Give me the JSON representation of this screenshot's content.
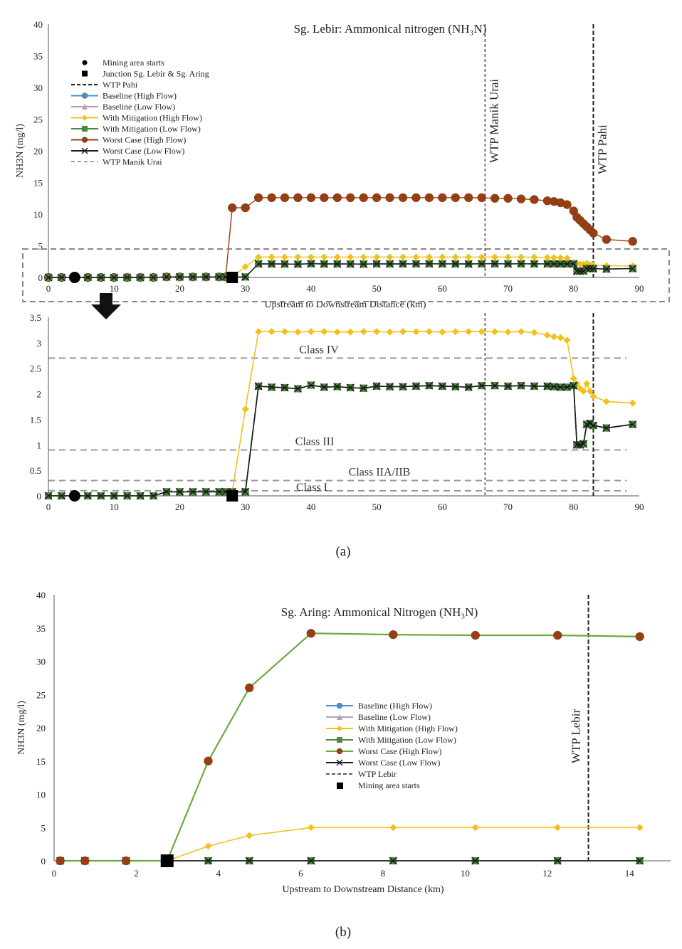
{
  "chart_data": [
    {
      "type": "line",
      "panel_label": "(a)",
      "title": "Sg. Lebir: Ammonical nitrogen (NH₃N)",
      "xlabel": "Upstream to Downstream Distance (km)",
      "ylabel": "NH3N (mg/l)",
      "xlim": [
        0,
        90
      ],
      "ylim": [
        0,
        40
      ],
      "xticks": [
        "0",
        "10",
        "20",
        "30",
        "40",
        "50",
        "60",
        "70",
        "80",
        "90"
      ],
      "yticks": [
        "0",
        "5",
        "10",
        "15",
        "20",
        "25",
        "30",
        "35",
        "40"
      ],
      "x": [
        0,
        2,
        4,
        6,
        8,
        10,
        12,
        14,
        16,
        18,
        20,
        22,
        24,
        26,
        27,
        28,
        30,
        32,
        34,
        36,
        38,
        40,
        42,
        44,
        46,
        48,
        50,
        52,
        54,
        56,
        58,
        60,
        62,
        64,
        66,
        68,
        70,
        72,
        74,
        76,
        77,
        78,
        79,
        80,
        80.5,
        81,
        81.5,
        82,
        82.5,
        83,
        85,
        89
      ],
      "series": [
        {
          "name": "Baseline (High Flow)",
          "color": "#4a90c8",
          "marker": "circle",
          "values": [
            0,
            0,
            0,
            0,
            0,
            0,
            0,
            0,
            0,
            0.08,
            0.08,
            0.08,
            0.08,
            0.08,
            0.08,
            0.08,
            0.08,
            2.15,
            2.13,
            2.12,
            2.1,
            2.17,
            2.13,
            2.14,
            2.12,
            2.11,
            2.15,
            2.14,
            2.14,
            2.15,
            2.16,
            2.15,
            2.14,
            2.13,
            2.16,
            2.16,
            2.15,
            2.16,
            2.15,
            2.15,
            2.14,
            2.13,
            2.13,
            2.16,
            1.0,
            1.0,
            1.02,
            1.4,
            1.42,
            1.38,
            1.33,
            1.4
          ]
        },
        {
          "name": "Baseline (Low Flow)",
          "color": "#b79fb5",
          "marker": "triangle",
          "values": [
            0,
            0,
            0,
            0,
            0,
            0,
            0,
            0,
            0,
            0.08,
            0.08,
            0.08,
            0.08,
            0.08,
            0.08,
            0.08,
            0.08,
            2.15,
            2.13,
            2.12,
            2.1,
            2.17,
            2.13,
            2.14,
            2.12,
            2.11,
            2.15,
            2.14,
            2.14,
            2.15,
            2.16,
            2.15,
            2.14,
            2.13,
            2.16,
            2.16,
            2.15,
            2.16,
            2.15,
            2.15,
            2.14,
            2.13,
            2.13,
            2.16,
            1.0,
            1.0,
            1.02,
            1.4,
            1.42,
            1.38,
            1.33,
            1.4
          ]
        },
        {
          "name": "With Mitigation (High Flow)",
          "color": "#f2c11c",
          "marker": "diamond",
          "values": [
            0,
            0,
            0,
            0,
            0,
            0,
            0,
            0,
            0,
            0.08,
            0.08,
            0.08,
            0.08,
            0.08,
            0.08,
            0.08,
            1.7,
            3.22,
            3.22,
            3.22,
            3.21,
            3.22,
            3.22,
            3.21,
            3.21,
            3.22,
            3.22,
            3.21,
            3.22,
            3.22,
            3.22,
            3.21,
            3.22,
            3.22,
            3.22,
            3.22,
            3.21,
            3.22,
            3.2,
            3.15,
            3.12,
            3.1,
            3.05,
            2.3,
            2.2,
            2.1,
            2.05,
            2.2,
            2.05,
            1.95,
            1.85,
            1.82
          ]
        },
        {
          "name": "With Mitigation (Low Flow)",
          "color": "#4b8a3c",
          "marker": "square",
          "values": [
            0,
            0,
            0,
            0,
            0,
            0,
            0,
            0,
            0,
            0.08,
            0.08,
            0.08,
            0.08,
            0.08,
            0.08,
            0.08,
            0.08,
            2.15,
            2.13,
            2.12,
            2.1,
            2.17,
            2.13,
            2.14,
            2.12,
            2.11,
            2.15,
            2.14,
            2.14,
            2.15,
            2.16,
            2.15,
            2.14,
            2.13,
            2.16,
            2.16,
            2.15,
            2.16,
            2.15,
            2.15,
            2.14,
            2.13,
            2.13,
            2.16,
            1.0,
            1.0,
            1.02,
            1.4,
            1.42,
            1.38,
            1.33,
            1.4
          ]
        },
        {
          "name": "Worst Case (High Flow)",
          "color": "#9a3d10",
          "marker": "circle",
          "values": [
            0,
            0,
            0,
            0,
            0,
            0,
            0,
            0,
            0,
            0.08,
            0.08,
            0.08,
            0.08,
            0.08,
            0.08,
            11,
            11,
            12.6,
            12.6,
            12.6,
            12.6,
            12.6,
            12.6,
            12.6,
            12.6,
            12.6,
            12.6,
            12.6,
            12.6,
            12.6,
            12.6,
            12.6,
            12.6,
            12.6,
            12.6,
            12.5,
            12.5,
            12.4,
            12.3,
            12.1,
            12,
            11.8,
            11.5,
            10.5,
            9.5,
            9,
            8.5,
            8.0,
            7.5,
            7,
            6,
            5.7
          ]
        },
        {
          "name": "Worst Case (Low Flow)",
          "color": "#1a1a1a",
          "marker": "x",
          "values": [
            0,
            0,
            0,
            0,
            0,
            0,
            0,
            0,
            0,
            0.08,
            0.08,
            0.08,
            0.08,
            0.08,
            0.08,
            0.08,
            0.08,
            2.15,
            2.13,
            2.12,
            2.1,
            2.17,
            2.13,
            2.14,
            2.12,
            2.11,
            2.15,
            2.14,
            2.14,
            2.15,
            2.16,
            2.15,
            2.14,
            2.13,
            2.16,
            2.16,
            2.15,
            2.16,
            2.15,
            2.15,
            2.14,
            2.13,
            2.13,
            2.16,
            1.0,
            1.0,
            1.02,
            1.4,
            1.42,
            1.38,
            1.33,
            1.4
          ]
        }
      ],
      "markers": {
        "mining_area_starts_x": 4,
        "junction_x": 28
      },
      "vertical_lines": [
        {
          "name": "WTP Manik Urai",
          "x": 66.5,
          "label": "WTP Manik Urai"
        },
        {
          "name": "WTP Pahi",
          "x": 83,
          "label": "WTP Pahi"
        }
      ],
      "legend": [
        "Mining area starts",
        "Junction Sg. Lebir & Sg. Aring",
        "WTP Pahi",
        "Baseline (High Flow)",
        "Baseline (Low Flow)",
        "With Mitigation (High Flow)",
        "With Mitigation (Low Flow)",
        "Worst Case (High Flow)",
        "Worst Case (Low Flow)",
        "WTP Manik Urai"
      ],
      "legend_position": "top-left"
    },
    {
      "type": "line",
      "panel_label": "zoom",
      "title": "",
      "xlabel": "",
      "ylabel": "",
      "xlim": [
        0,
        90
      ],
      "ylim": [
        0,
        3.5
      ],
      "xticks": [
        "0",
        "10",
        "20",
        "30",
        "40",
        "50",
        "60",
        "70",
        "80",
        "90"
      ],
      "yticks": [
        "0",
        "0.5",
        "1",
        "1.5",
        "2",
        "2.5",
        "3",
        "3.5"
      ],
      "class_lines": [
        {
          "name": "Class IV",
          "y": 2.7,
          "label": "Class IV"
        },
        {
          "name": "Class III",
          "y": 0.9,
          "label": "Class III"
        },
        {
          "name": "Class IIA/IIB",
          "y": 0.3,
          "label": "Class IIA/IIB"
        },
        {
          "name": "Class I",
          "y": 0.1,
          "label": "Class I"
        }
      ]
    },
    {
      "type": "line",
      "panel_label": "(b)",
      "title": "Sg. Aring: Ammonical Nitrogen (NH₃N)",
      "xlabel": "Upstream to Downstream Distance (km)",
      "ylabel": "NH3N (mg/l)",
      "xlim": [
        0,
        15
      ],
      "ylim": [
        0,
        40
      ],
      "xticks": [
        "0",
        "2",
        "4",
        "6",
        "8",
        "10",
        "12",
        "14"
      ],
      "yticks": [
        "0",
        "5",
        "10",
        "15",
        "20",
        "25",
        "30",
        "35",
        "40"
      ],
      "x": [
        0.15,
        0.75,
        1.75,
        2.75,
        3.75,
        4.75,
        6.25,
        8.25,
        10.25,
        12.25,
        14.25
      ],
      "series": [
        {
          "name": "Baseline (High Flow)",
          "color": "#4a90c8",
          "marker": "circle",
          "values": [
            0,
            0,
            0,
            0,
            0,
            0,
            0,
            0,
            0,
            0,
            0
          ]
        },
        {
          "name": "Baseline (Low Flow)",
          "color": "#b79fb5",
          "marker": "triangle",
          "values": [
            0,
            0,
            0,
            0,
            0,
            0,
            0,
            0,
            0,
            0,
            0
          ]
        },
        {
          "name": "With Mitigation (High Flow)",
          "color": "#f2c11c",
          "marker": "diamond",
          "values": [
            0,
            0,
            0,
            0,
            2.2,
            3.8,
            5.0,
            5.0,
            5.0,
            5.0,
            5.0
          ]
        },
        {
          "name": "With Mitigation (Low Flow)",
          "color": "#4b8a3c",
          "marker": "square",
          "values": [
            0,
            0,
            0,
            0,
            0,
            0,
            0,
            0,
            0,
            0,
            0
          ]
        },
        {
          "name": "Worst Case (High Flow)",
          "color": "#9a3d10",
          "marker": "circle",
          "line_color": "#6aab3e",
          "values": [
            0,
            0,
            0,
            0,
            15,
            26,
            34.2,
            34,
            33.9,
            33.9,
            33.7
          ]
        },
        {
          "name": "Worst Case (Low Flow)",
          "color": "#1a1a1a",
          "marker": "x",
          "values": [
            0,
            0,
            0,
            0,
            0,
            0,
            0,
            0,
            0,
            0,
            0
          ]
        }
      ],
      "markers": {
        "mining_area_starts_x": 2.75
      },
      "vertical_lines": [
        {
          "name": "WTP Lebir",
          "x": 13,
          "label": "WTP Lebir"
        }
      ],
      "legend": [
        "Baseline (High Flow)",
        "Baseline (Low Flow)",
        "With Mitigation (High Flow)",
        "With Mitigation (Low Flow)",
        "Worst Case (High Flow)",
        "Worst Case (Low Flow)",
        "WTP Lebir",
        "Mining area starts"
      ],
      "legend_position": "center"
    }
  ]
}
